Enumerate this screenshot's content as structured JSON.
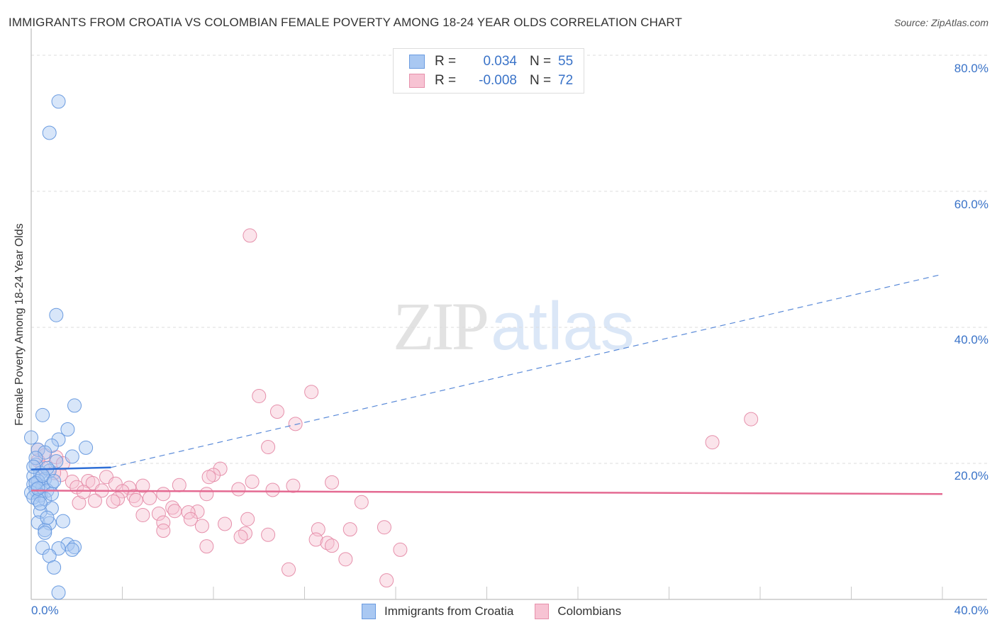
{
  "header": {
    "title": "IMMIGRANTS FROM CROATIA VS COLOMBIAN FEMALE POVERTY AMONG 18-24 YEAR OLDS CORRELATION CHART",
    "source": "Source: ZipAtlas.com"
  },
  "watermark": {
    "zip": "ZIP",
    "atlas": "atlas"
  },
  "legend": {
    "series": [
      {
        "r_label": "R =",
        "r_value": "0.034",
        "n_label": "N =",
        "n_value": "55",
        "color": "#a9c8f2",
        "border": "#6a9be0"
      },
      {
        "r_label": "R =",
        "r_value": "-0.008",
        "n_label": "N =",
        "n_value": "72",
        "color": "#f7c3d3",
        "border": "#e690ab"
      }
    ]
  },
  "bottom_legend": [
    {
      "label": "Immigrants from Croatia",
      "color": "#a9c8f2",
      "border": "#6a9be0"
    },
    {
      "label": "Colombians",
      "color": "#f7c3d3",
      "border": "#e690ab"
    }
  ],
  "axes": {
    "ylabel": "Female Poverty Among 18-24 Year Olds",
    "y_ticks": [
      "80.0%",
      "60.0%",
      "40.0%",
      "20.0%"
    ],
    "x_ticks": [
      "0.0%",
      "40.0%"
    ]
  },
  "chart_data": {
    "type": "scatter",
    "title": "IMMIGRANTS FROM CROATIA VS COLOMBIAN FEMALE POVERTY AMONG 18-24 YEAR OLDS CORRELATION CHART",
    "xlabel": "Immigrants from Croatia",
    "ylabel": "Female Poverty Among 18-24 Year Olds",
    "xlim": [
      0,
      40
    ],
    "ylim": [
      0,
      82
    ],
    "x_unit": "%",
    "y_unit": "%",
    "grid": true,
    "legend_position": "top-center",
    "series": [
      {
        "name": "Immigrants from Croatia",
        "color": "#6a9be0",
        "R": 0.034,
        "N": 55,
        "trend": {
          "x": [
            0,
            3.5,
            40
          ],
          "y": [
            19.1,
            19.4,
            47.8
          ],
          "solid_until": 3.5
        },
        "points": [
          [
            1.2,
            73.2
          ],
          [
            0.8,
            68.6
          ],
          [
            1.1,
            41.8
          ],
          [
            1.9,
            28.5
          ],
          [
            0.5,
            27.1
          ],
          [
            1.6,
            25.0
          ],
          [
            0.0,
            23.8
          ],
          [
            1.2,
            23.5
          ],
          [
            2.4,
            22.3
          ],
          [
            0.9,
            22.6
          ],
          [
            0.3,
            22.0
          ],
          [
            0.6,
            21.6
          ],
          [
            1.8,
            21.0
          ],
          [
            1.1,
            20.3
          ],
          [
            0.2,
            19.8
          ],
          [
            0.8,
            18.9
          ],
          [
            0.4,
            18.6
          ],
          [
            0.1,
            18.1
          ],
          [
            0.6,
            17.7
          ],
          [
            0.3,
            17.4
          ],
          [
            0.9,
            17.0
          ],
          [
            0.1,
            16.9
          ],
          [
            0.5,
            16.5
          ],
          [
            0.2,
            16.1
          ],
          [
            0.7,
            16.0
          ],
          [
            0.0,
            15.7
          ],
          [
            0.4,
            15.3
          ],
          [
            0.1,
            15.0
          ],
          [
            0.6,
            14.8
          ],
          [
            0.3,
            14.6
          ],
          [
            0.9,
            13.4
          ],
          [
            0.4,
            12.9
          ],
          [
            1.4,
            11.5
          ],
          [
            0.3,
            11.3
          ],
          [
            0.8,
            11.2
          ],
          [
            0.6,
            10.2
          ],
          [
            0.6,
            9.8
          ],
          [
            1.6,
            8.1
          ],
          [
            1.2,
            7.5
          ],
          [
            0.5,
            7.6
          ],
          [
            1.9,
            7.7
          ],
          [
            1.8,
            7.3
          ],
          [
            0.8,
            6.4
          ],
          [
            1.0,
            4.7
          ],
          [
            1.2,
            1.0
          ],
          [
            0.2,
            20.8
          ],
          [
            0.7,
            19.3
          ],
          [
            0.2,
            17.1
          ],
          [
            0.5,
            18.2
          ],
          [
            0.9,
            15.5
          ],
          [
            0.4,
            14.1
          ],
          [
            0.7,
            12.0
          ],
          [
            1.0,
            17.4
          ],
          [
            0.3,
            16.3
          ],
          [
            0.1,
            19.5
          ]
        ]
      },
      {
        "name": "Colombians",
        "color": "#e690ab",
        "R": -0.008,
        "N": 72,
        "trend": {
          "x": [
            0,
            40
          ],
          "y": [
            16.0,
            15.5
          ]
        },
        "points": [
          [
            9.6,
            53.5
          ],
          [
            12.3,
            30.5
          ],
          [
            10.0,
            29.9
          ],
          [
            10.8,
            27.6
          ],
          [
            11.6,
            25.8
          ],
          [
            10.4,
            22.4
          ],
          [
            31.6,
            26.5
          ],
          [
            29.9,
            23.1
          ],
          [
            0.3,
            22.0
          ],
          [
            0.6,
            21.2
          ],
          [
            1.1,
            20.9
          ],
          [
            0.3,
            20.4
          ],
          [
            1.4,
            20.0
          ],
          [
            0.5,
            19.4
          ],
          [
            1.3,
            18.3
          ],
          [
            8.3,
            19.2
          ],
          [
            8.0,
            18.3
          ],
          [
            7.8,
            18.0
          ],
          [
            3.3,
            18.0
          ],
          [
            2.5,
            17.4
          ],
          [
            2.7,
            17.1
          ],
          [
            3.7,
            17.0
          ],
          [
            1.8,
            17.3
          ],
          [
            9.7,
            17.3
          ],
          [
            13.2,
            17.2
          ],
          [
            6.5,
            16.8
          ],
          [
            4.9,
            16.7
          ],
          [
            11.5,
            16.7
          ],
          [
            2.0,
            16.5
          ],
          [
            4.3,
            16.4
          ],
          [
            9.1,
            16.2
          ],
          [
            3.1,
            16.0
          ],
          [
            10.6,
            16.1
          ],
          [
            4.0,
            15.9
          ],
          [
            5.8,
            15.5
          ],
          [
            7.7,
            15.5
          ],
          [
            4.5,
            15.2
          ],
          [
            3.8,
            14.8
          ],
          [
            5.2,
            14.9
          ],
          [
            2.8,
            14.5
          ],
          [
            4.6,
            14.6
          ],
          [
            3.6,
            14.4
          ],
          [
            2.1,
            14.2
          ],
          [
            14.5,
            14.3
          ],
          [
            6.2,
            13.5
          ],
          [
            7.3,
            12.9
          ],
          [
            5.6,
            12.6
          ],
          [
            6.9,
            12.8
          ],
          [
            4.9,
            12.4
          ],
          [
            7.0,
            11.8
          ],
          [
            9.5,
            11.8
          ],
          [
            5.8,
            11.3
          ],
          [
            8.5,
            11.1
          ],
          [
            7.5,
            10.8
          ],
          [
            15.5,
            10.6
          ],
          [
            12.6,
            10.3
          ],
          [
            5.8,
            10.1
          ],
          [
            14.0,
            10.3
          ],
          [
            9.4,
            9.7
          ],
          [
            10.4,
            9.5
          ],
          [
            9.2,
            9.2
          ],
          [
            12.5,
            8.8
          ],
          [
            13.0,
            8.3
          ],
          [
            13.2,
            7.9
          ],
          [
            7.7,
            7.8
          ],
          [
            16.2,
            7.3
          ],
          [
            13.8,
            5.9
          ],
          [
            11.3,
            4.4
          ],
          [
            15.6,
            2.8
          ],
          [
            2.3,
            15.8
          ],
          [
            6.3,
            13.0
          ],
          [
            1.0,
            18.6
          ]
        ]
      }
    ]
  }
}
